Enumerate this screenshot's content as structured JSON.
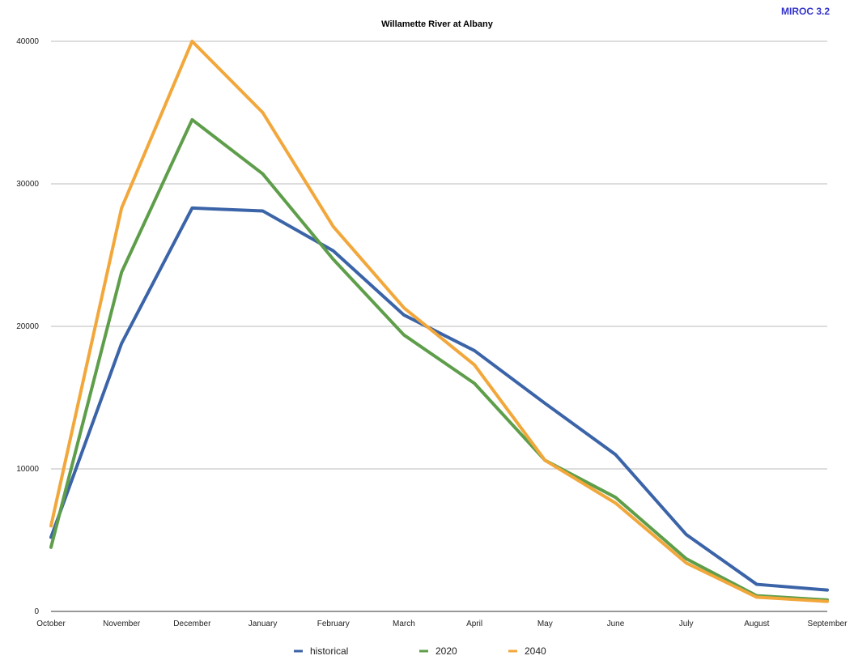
{
  "chart_data": {
    "type": "line",
    "title": "Willamette River at Albany",
    "badge": "MIROC 3.2",
    "categories": [
      "October",
      "November",
      "December",
      "January",
      "February",
      "March",
      "April",
      "May",
      "June",
      "July",
      "August",
      "September"
    ],
    "ylim": [
      0,
      40000
    ],
    "yticks": [
      0,
      10000,
      20000,
      30000,
      40000
    ],
    "grid": true,
    "legend_position": "bottom",
    "series": [
      {
        "name": "historical",
        "color": "#3b64a8",
        "values": [
          5200,
          18800,
          28300,
          28100,
          25300,
          20800,
          18300,
          14600,
          11000,
          5400,
          1900,
          1500
        ]
      },
      {
        "name": "2020",
        "color": "#5e9e4a",
        "values": [
          4500,
          23800,
          34500,
          30700,
          24700,
          19400,
          16000,
          10600,
          8000,
          3700,
          1100,
          800
        ]
      },
      {
        "name": "2040",
        "color": "#f2a73b",
        "values": [
          6000,
          28300,
          40000,
          35000,
          27000,
          21300,
          17300,
          10600,
          7600,
          3400,
          1000,
          700
        ]
      }
    ]
  },
  "colors": {
    "badge": "#3333cc",
    "grid": "#bbbbbb",
    "axis": "#333333"
  }
}
